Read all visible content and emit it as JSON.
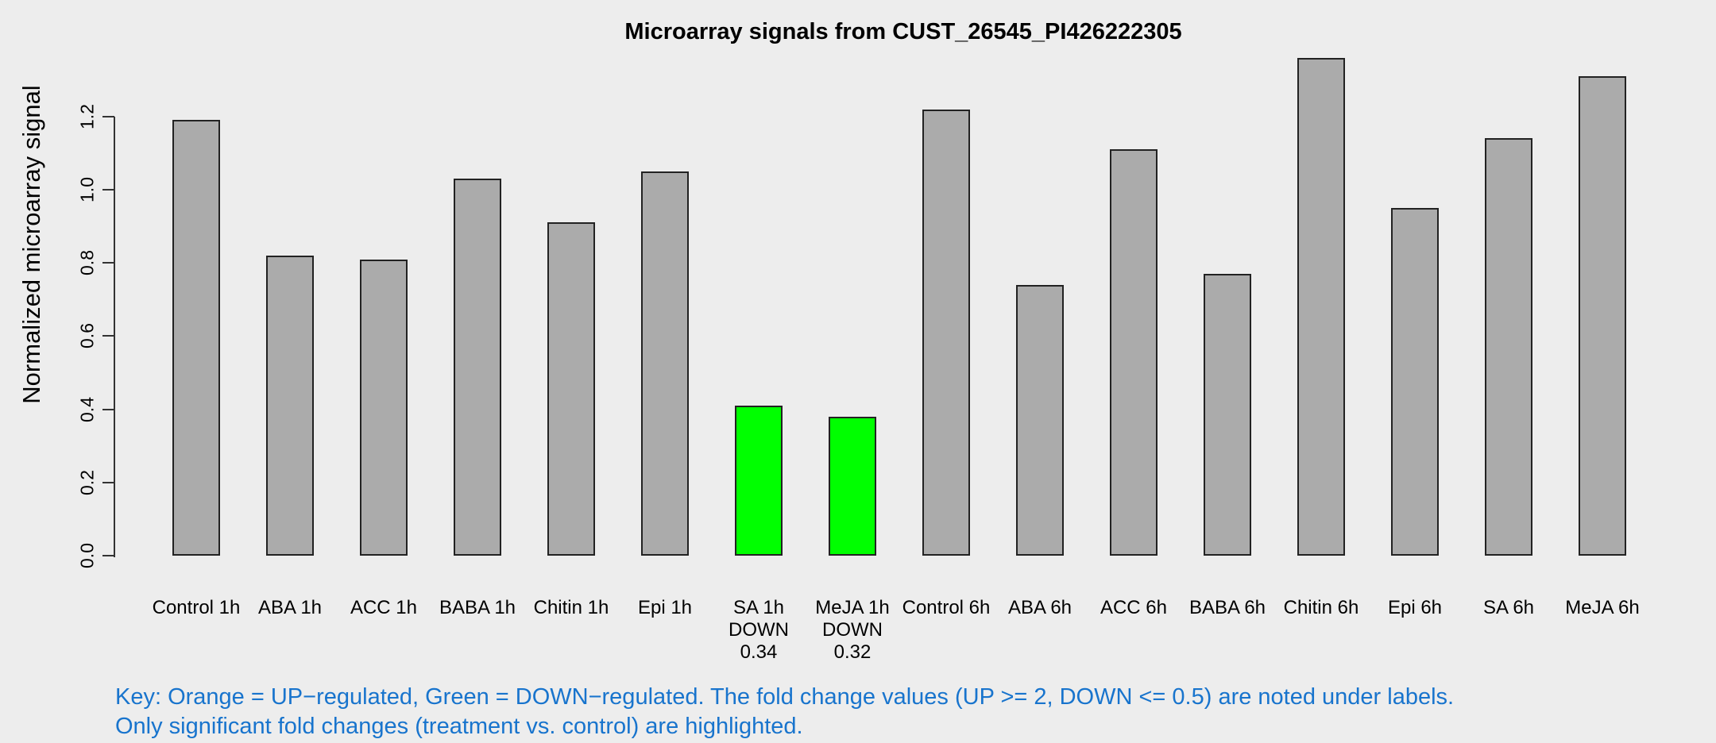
{
  "title": "Microarray signals from CUST_26545_PI426222305",
  "chart_data": {
    "type": "bar",
    "title": "Microarray signals from CUST_26545_PI426222305",
    "xlabel": "",
    "ylabel": "Normalized microarray signal",
    "ylim": [
      0,
      1.4
    ],
    "yticks": [
      0.0,
      0.2,
      0.4,
      0.6,
      0.8,
      1.0,
      1.2
    ],
    "grid": "off",
    "legend": "none",
    "colors": {
      "default": "#ABABAB",
      "down": "#00FF00",
      "up": "#FFA500",
      "background": "#EDEDED",
      "bar_border": "#222222",
      "axis": "#333333",
      "footnote_text": "#1874CD"
    },
    "bars": [
      {
        "label": "Control 1h",
        "value": 1.19,
        "color_key": "default",
        "sublabels": []
      },
      {
        "label": "ABA 1h",
        "value": 0.82,
        "color_key": "default",
        "sublabels": []
      },
      {
        "label": "ACC 1h",
        "value": 0.81,
        "color_key": "default",
        "sublabels": []
      },
      {
        "label": "BABA 1h",
        "value": 1.03,
        "color_key": "default",
        "sublabels": []
      },
      {
        "label": "Chitin 1h",
        "value": 0.91,
        "color_key": "default",
        "sublabels": []
      },
      {
        "label": "Epi 1h",
        "value": 1.05,
        "color_key": "default",
        "sublabels": []
      },
      {
        "label": "SA 1h",
        "value": 0.41,
        "color_key": "down",
        "sublabels": [
          "DOWN",
          "0.34"
        ]
      },
      {
        "label": "MeJA 1h",
        "value": 0.38,
        "color_key": "down",
        "sublabels": [
          "DOWN",
          "0.32"
        ]
      },
      {
        "label": "Control 6h",
        "value": 1.22,
        "color_key": "default",
        "sublabels": []
      },
      {
        "label": "ABA 6h",
        "value": 0.74,
        "color_key": "default",
        "sublabels": []
      },
      {
        "label": "ACC 6h",
        "value": 1.11,
        "color_key": "default",
        "sublabels": []
      },
      {
        "label": "BABA 6h",
        "value": 0.77,
        "color_key": "default",
        "sublabels": []
      },
      {
        "label": "Chitin 6h",
        "value": 1.36,
        "color_key": "default",
        "sublabels": []
      },
      {
        "label": "Epi 6h",
        "value": 0.95,
        "color_key": "default",
        "sublabels": []
      },
      {
        "label": "SA 6h",
        "value": 1.14,
        "color_key": "default",
        "sublabels": []
      },
      {
        "label": "MeJA 6h",
        "value": 1.31,
        "color_key": "default",
        "sublabels": []
      }
    ]
  },
  "footnote": {
    "line1": "Key: Orange = UP−regulated, Green = DOWN−regulated. The fold change values (UP >= 2, DOWN <= 0.5) are noted under labels.",
    "line2": "Only significant fold changes (treatment vs. control) are highlighted."
  }
}
